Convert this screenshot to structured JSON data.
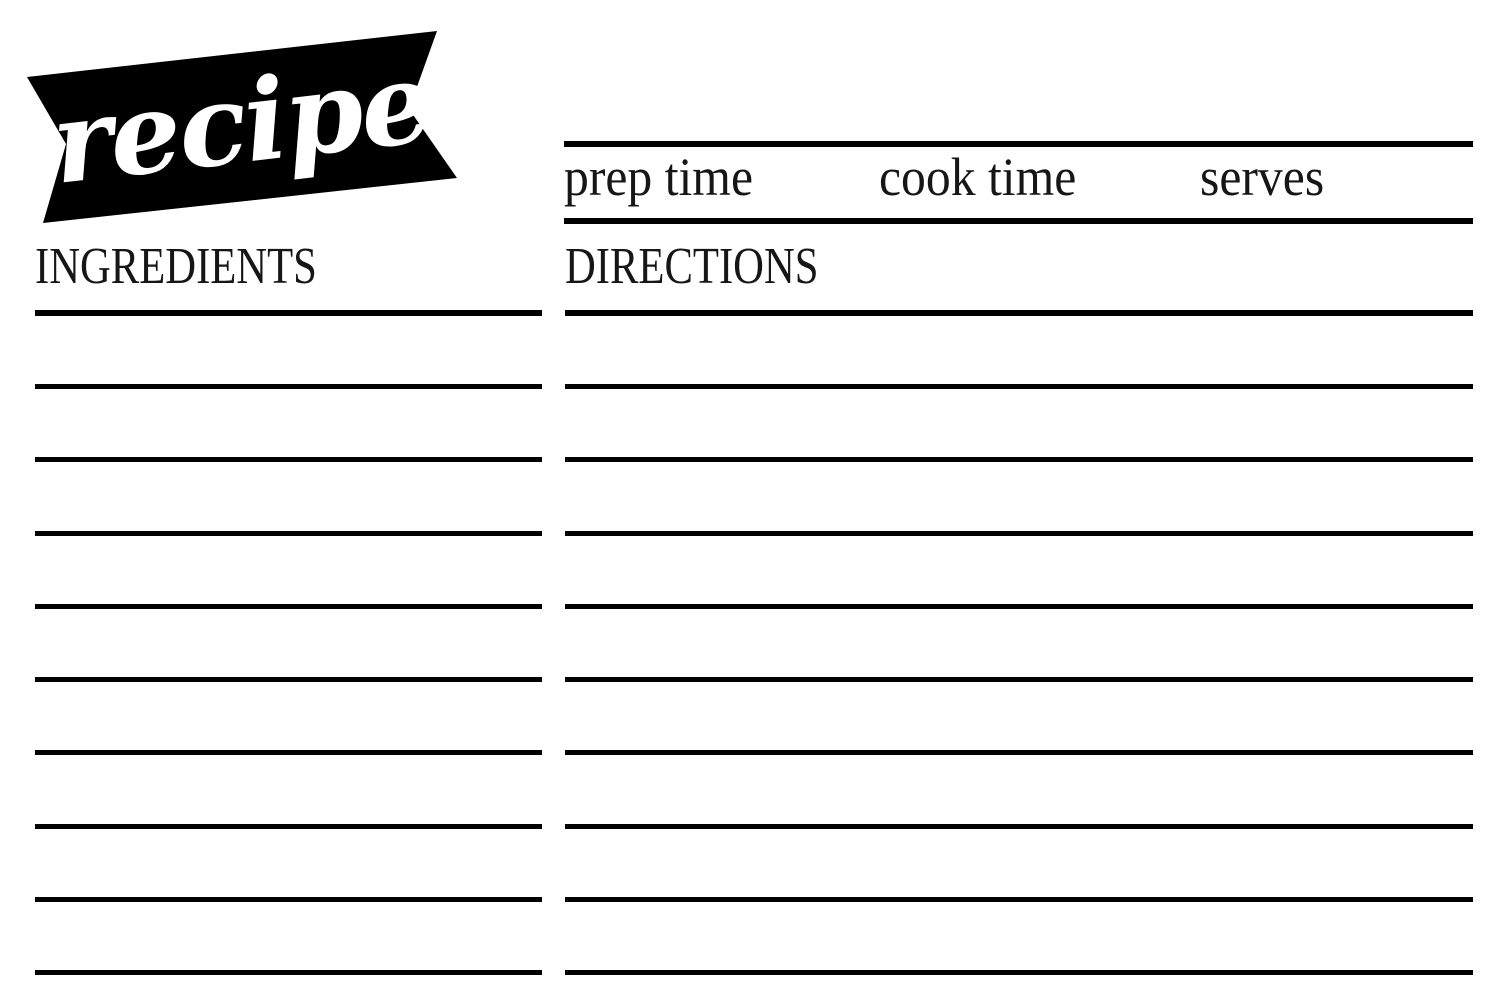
{
  "banner": {
    "title": "recipe",
    "background": "#000000",
    "text_color": "#ffffff"
  },
  "header": {
    "fields": [
      "prep time",
      "cook time",
      "serves"
    ]
  },
  "sections": {
    "ingredients": {
      "title": "INGREDIENTS",
      "writing_lines": 9
    },
    "directions": {
      "title": "DIRECTIONS",
      "writing_lines": 9
    }
  },
  "colors": {
    "ink": "#000000",
    "text": "#161616",
    "paper": "#ffffff"
  }
}
